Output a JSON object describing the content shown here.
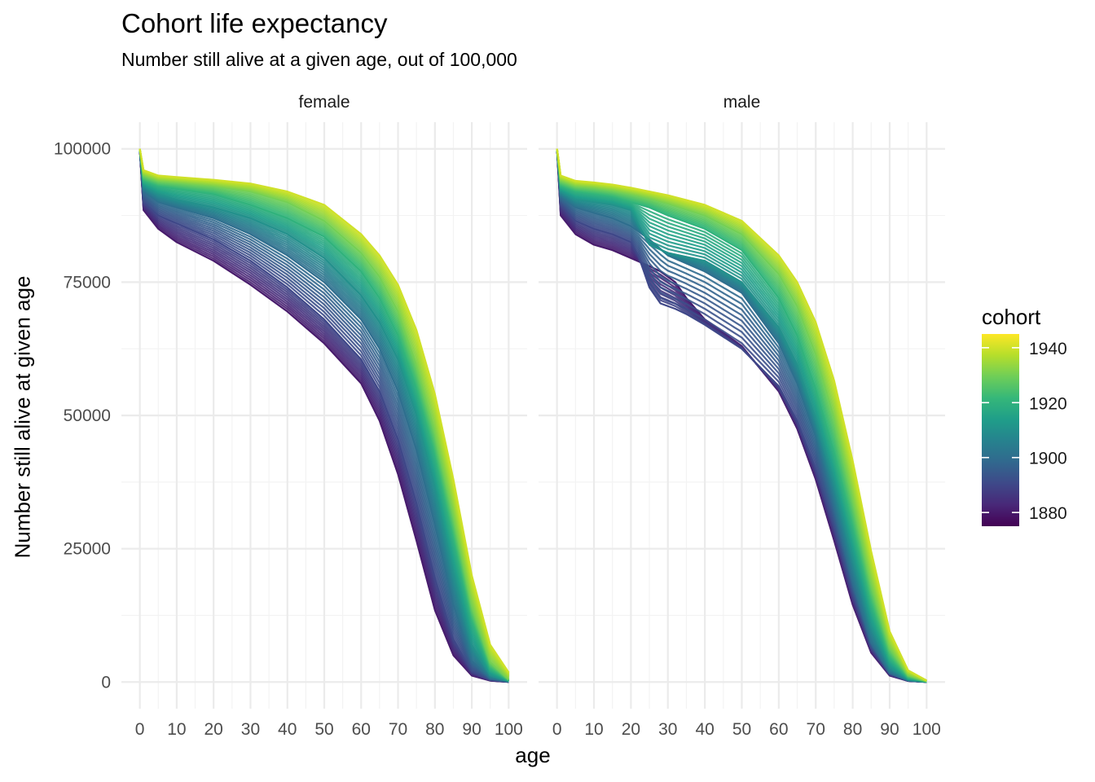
{
  "chart_data": {
    "type": "line",
    "title": "Cohort life expectancy",
    "subtitle": "Number still alive at a given age, out of 100,000",
    "xlabel": "age",
    "ylabel": "Number still alive at given age",
    "xlim": [
      -5,
      105
    ],
    "ylim": [
      -5000,
      105000
    ],
    "x_ticks": [
      0,
      10,
      20,
      30,
      40,
      50,
      60,
      70,
      80,
      90,
      100
    ],
    "y_ticks": [
      0,
      25000,
      50000,
      75000,
      100000
    ],
    "y_tick_labels": [
      "0",
      "25000",
      "50000",
      "75000",
      "100000"
    ],
    "grid": true,
    "facets": [
      {
        "label": "female",
        "series": [
          {
            "cohort": 1880,
            "x": [
              0,
              1,
              5,
              10,
              20,
              30,
              40,
              50,
              60,
              65,
              70,
              75,
              80,
              85,
              90,
              95,
              100
            ],
            "values": [
              100000,
              88500,
              85000,
              82500,
              79000,
              74500,
              69500,
              63500,
              56000,
              49000,
              39000,
              26500,
              13500,
              5000,
              1200,
              250,
              30
            ]
          },
          {
            "cohort": 1890,
            "x": [
              0,
              1,
              5,
              10,
              20,
              30,
              40,
              50,
              60,
              65,
              70,
              75,
              80,
              85,
              90,
              95,
              100
            ],
            "values": [
              100000,
              90000,
              87500,
              86000,
              83000,
              79000,
              74000,
              68000,
              60500,
              54500,
              45500,
              33500,
              19500,
              8000,
              2000,
              400,
              50
            ]
          },
          {
            "cohort": 1900,
            "x": [
              0,
              1,
              5,
              10,
              20,
              30,
              40,
              50,
              60,
              65,
              70,
              75,
              80,
              85,
              90,
              95,
              100
            ],
            "values": [
              100000,
              92000,
              90000,
              89000,
              87000,
              84000,
              80000,
              75000,
              68000,
              62500,
              54500,
              43500,
              29500,
              14500,
              4000,
              700,
              80
            ]
          },
          {
            "cohort": 1910,
            "x": [
              0,
              1,
              5,
              10,
              20,
              30,
              40,
              50,
              60,
              65,
              70,
              75,
              80,
              85,
              90,
              95,
              100
            ],
            "values": [
              100000,
              93000,
              91500,
              90500,
              89000,
              87000,
              84000,
              79500,
              72500,
              67500,
              60500,
              50000,
              36500,
              20500,
              7000,
              1300,
              150
            ]
          },
          {
            "cohort": 1920,
            "x": [
              0,
              1,
              5,
              10,
              20,
              30,
              40,
              50,
              60,
              65,
              70,
              75,
              80,
              85,
              90,
              95,
              100
            ],
            "values": [
              100000,
              94000,
              93000,
              92500,
              91500,
              89500,
              87000,
              83500,
              77000,
              72000,
              65000,
              55000,
              42500,
              27000,
              11500,
              2500,
              300
            ]
          },
          {
            "cohort": 1930,
            "x": [
              0,
              1,
              5,
              10,
              20,
              30,
              40,
              50,
              60,
              65,
              70,
              75,
              80,
              85,
              90,
              95,
              100
            ],
            "values": [
              100000,
              95000,
              94000,
              93700,
              93000,
              92000,
              90000,
              86500,
              80500,
              76000,
              69500,
              59500,
              47000,
              31500,
              14500,
              3800,
              500
            ]
          },
          {
            "cohort": 1940,
            "x": [
              0,
              1,
              5,
              10,
              20,
              30,
              40,
              50,
              60,
              65,
              70,
              75,
              80,
              85,
              90,
              95,
              100
            ],
            "values": [
              100000,
              96000,
              95000,
              94700,
              94200,
              93500,
              92000,
              89500,
              84000,
              80000,
              74500,
              66000,
              54000,
              38000,
              20000,
              7000,
              1800
            ]
          }
        ]
      },
      {
        "label": "male",
        "series": [
          {
            "cohort": 1880,
            "x": [
              0,
              1,
              5,
              10,
              15,
              20,
              25,
              28,
              32,
              35,
              40,
              50,
              60,
              65,
              70,
              75,
              80,
              85,
              90,
              95,
              100
            ],
            "values": [
              100000,
              87500,
              84000,
              82000,
              81000,
              79500,
              78000,
              77000,
              75000,
              72000,
              68000,
              63000,
              54500,
              47500,
              38000,
              26500,
              14500,
              5500,
              1200,
              200,
              20
            ]
          },
          {
            "cohort": 1890,
            "x": [
              0,
              1,
              5,
              10,
              15,
              20,
              22,
              25,
              28,
              32,
              35,
              40,
              50,
              60,
              65,
              70,
              75,
              80,
              85,
              90,
              95,
              100
            ],
            "values": [
              100000,
              89500,
              86500,
              85000,
              84000,
              82500,
              80000,
              74000,
              71000,
              70000,
              69000,
              67000,
              62500,
              55500,
              49000,
              40000,
              29000,
              16500,
              6500,
              1500,
              250,
              25
            ]
          },
          {
            "cohort": 1900,
            "x": [
              0,
              1,
              5,
              10,
              15,
              20,
              25,
              30,
              40,
              50,
              60,
              65,
              70,
              75,
              80,
              85,
              90,
              95,
              100
            ],
            "values": [
              100000,
              91000,
              89000,
              88000,
              87000,
              85500,
              83000,
              80000,
              77000,
              73000,
              63500,
              56000,
              46000,
              33000,
              19000,
              7500,
              1800,
              300,
              30
            ]
          },
          {
            "cohort": 1910,
            "x": [
              0,
              1,
              5,
              10,
              15,
              20,
              25,
              30,
              40,
              50,
              60,
              65,
              70,
              75,
              80,
              85,
              90,
              95,
              100
            ],
            "values": [
              100000,
              92000,
              90500,
              90000,
              89500,
              88500,
              82000,
              80500,
              79000,
              75000,
              66500,
              59500,
              49500,
              37500,
              23500,
              10500,
              2800,
              450,
              40
            ]
          },
          {
            "cohort": 1920,
            "x": [
              0,
              1,
              5,
              10,
              15,
              20,
              25,
              30,
              40,
              50,
              60,
              65,
              70,
              75,
              80,
              85,
              90,
              95,
              100
            ],
            "values": [
              100000,
              93000,
              92000,
              91500,
              91000,
              90000,
              89000,
              87500,
              85000,
              81000,
              72000,
              65000,
              55000,
              43000,
              29000,
              14500,
              4500,
              800,
              80
            ]
          },
          {
            "cohort": 1930,
            "x": [
              0,
              1,
              5,
              10,
              15,
              20,
              25,
              30,
              40,
              50,
              60,
              65,
              70,
              75,
              80,
              85,
              90,
              95,
              100
            ],
            "values": [
              100000,
              94000,
              93000,
              92700,
              92200,
              91500,
              90700,
              89700,
              87500,
              84000,
              76500,
              70500,
              61500,
              49500,
              34500,
              18500,
              6500,
              1300,
              150
            ]
          },
          {
            "cohort": 1940,
            "x": [
              0,
              1,
              5,
              10,
              15,
              20,
              25,
              30,
              40,
              50,
              60,
              65,
              70,
              75,
              80,
              85,
              90,
              95,
              100
            ],
            "values": [
              100000,
              95000,
              94000,
              93700,
              93300,
              92700,
              92000,
              91300,
              89500,
              86500,
              80000,
              75000,
              67500,
              56500,
              41500,
              24500,
              9500,
              2200,
              300
            ]
          }
        ]
      }
    ],
    "legend": {
      "title": "cohort",
      "placement": "right",
      "range": [
        1875,
        1945
      ],
      "ticks": [
        1880,
        1900,
        1920,
        1940
      ],
      "tick_labels": [
        "1880",
        "1900",
        "1920",
        "1940"
      ],
      "palette": [
        "#440154",
        "#482878",
        "#3e4989",
        "#31688e",
        "#26828e",
        "#1f9e89",
        "#35b779",
        "#6ece58",
        "#b5de2b",
        "#fde725"
      ]
    }
  }
}
